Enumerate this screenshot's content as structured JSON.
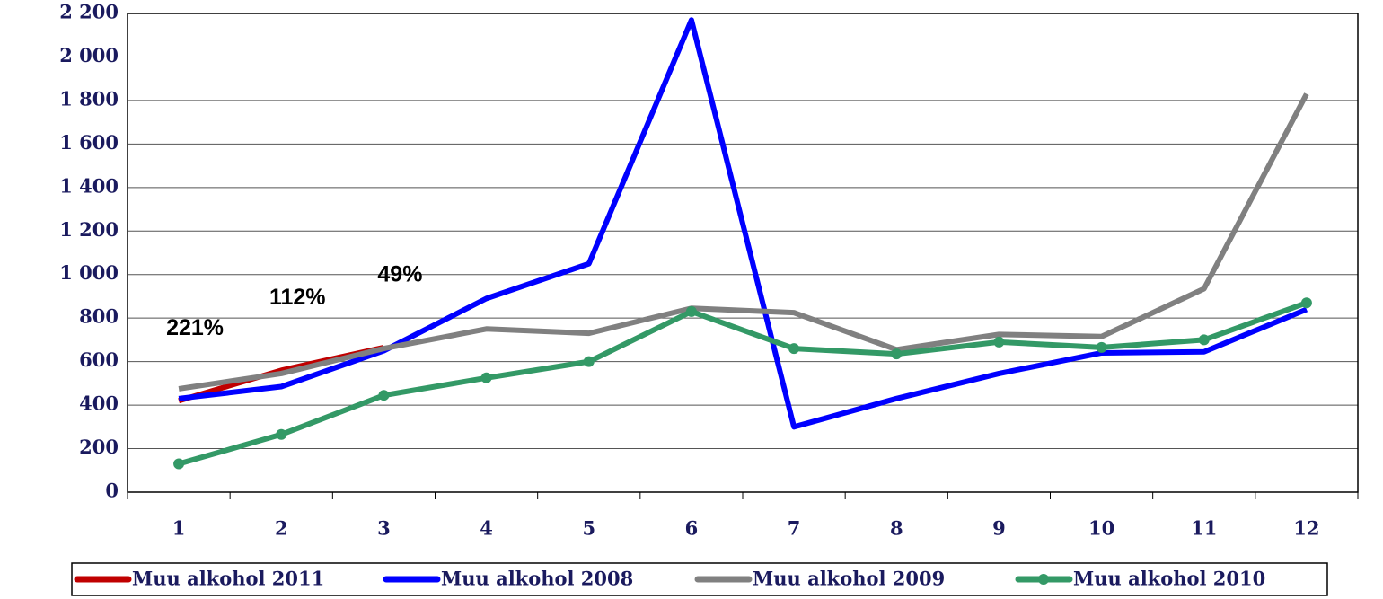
{
  "chart_data": {
    "type": "line",
    "categories": [
      "1",
      "2",
      "3",
      "4",
      "5",
      "6",
      "7",
      "8",
      "9",
      "10",
      "11",
      "12"
    ],
    "series": [
      {
        "name": "Muu alkohol 2011",
        "color": "#c00000",
        "values": [
          420,
          560,
          665,
          null,
          null,
          null,
          null,
          null,
          null,
          null,
          null,
          null
        ]
      },
      {
        "name": "Muu alkohol 2008",
        "color": "#0000ff",
        "values": [
          430,
          485,
          650,
          890,
          1050,
          2170,
          300,
          430,
          545,
          640,
          645,
          840
        ]
      },
      {
        "name": "Muu alkohol 2009",
        "color": "#808080",
        "values": [
          475,
          545,
          660,
          750,
          730,
          845,
          825,
          655,
          725,
          715,
          935,
          1830
        ]
      },
      {
        "name": "Muu alkohol 2010",
        "color": "#339966",
        "values": [
          130,
          265,
          445,
          525,
          600,
          830,
          660,
          635,
          690,
          665,
          700,
          870
        ],
        "markers": true
      }
    ],
    "annotations": [
      "221%",
      "112%",
      "49%"
    ],
    "ylim": [
      0,
      2200
    ],
    "yticks": [
      0,
      200,
      400,
      600,
      800,
      {
        "value": 1000,
        "label": "1 000"
      },
      {
        "value": 1200,
        "label": "1 200"
      },
      {
        "value": 1400,
        "label": "1 400"
      },
      {
        "value": 1600,
        "label": "1 600"
      },
      {
        "value": 1800,
        "label": "1 800"
      },
      {
        "value": 2000,
        "label": "2 000"
      },
      {
        "value": 2200,
        "label": "2 200"
      }
    ],
    "grid": true,
    "legend": "bottom"
  }
}
